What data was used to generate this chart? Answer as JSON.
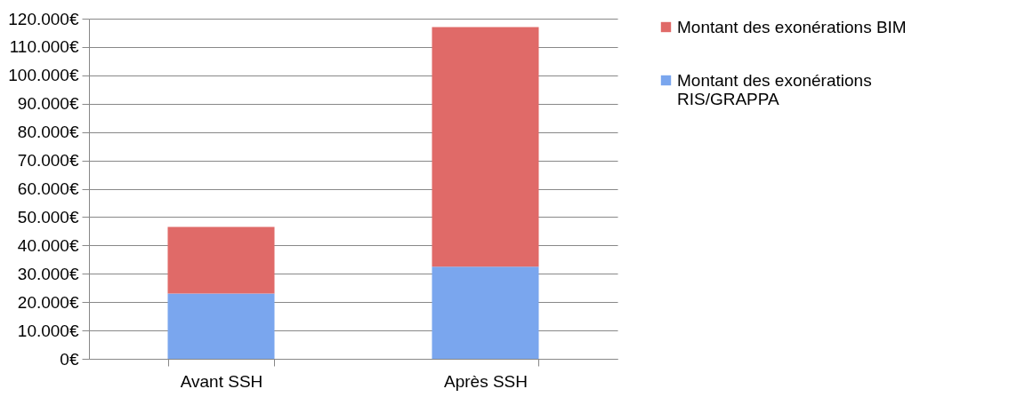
{
  "chart_data": {
    "type": "bar",
    "stacked": true,
    "categories": [
      "Avant SSH",
      "Après SSH"
    ],
    "series": [
      {
        "name": "Montant des exonérations RIS/GRAPPA",
        "color": "#7aa6ee",
        "values": [
          23000,
          32500
        ]
      },
      {
        "name": "Montant des exonérations BIM",
        "color": "#e06a68",
        "values": [
          23500,
          84500
        ]
      }
    ],
    "ylim": [
      0,
      120000
    ],
    "yticks": [
      {
        "value": 0,
        "label": "0€"
      },
      {
        "value": 10000,
        "label": "10.000€"
      },
      {
        "value": 20000,
        "label": "20.000€"
      },
      {
        "value": 30000,
        "label": "30.000€"
      },
      {
        "value": 40000,
        "label": "40.000€"
      },
      {
        "value": 50000,
        "label": "50.000€"
      },
      {
        "value": 60000,
        "label": "60.000€"
      },
      {
        "value": 70000,
        "label": "70.000€"
      },
      {
        "value": 80000,
        "label": "80.000€"
      },
      {
        "value": 90000,
        "label": "90.000€"
      },
      {
        "value": 100000,
        "label": "100.000€"
      },
      {
        "value": 110000,
        "label": "110.000€"
      },
      {
        "value": 120000,
        "label": "120.000€"
      }
    ],
    "grid": "y",
    "legend": "right"
  }
}
